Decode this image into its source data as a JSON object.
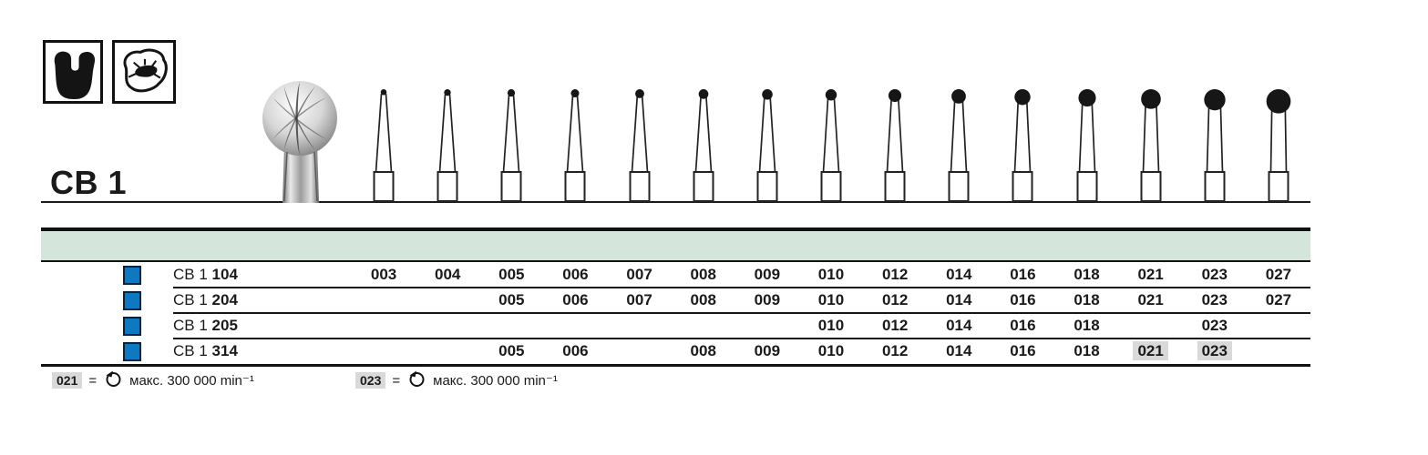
{
  "header": {
    "series_label": "CB 1",
    "icon1_name": "molar-silhouette-icon",
    "icon2_name": "occlusal-surface-icon"
  },
  "table": {
    "size_columns": [
      "003",
      "004",
      "005",
      "006",
      "007",
      "008",
      "009",
      "010",
      "012",
      "014",
      "016",
      "018",
      "021",
      "023",
      "027"
    ],
    "rows": [
      {
        "prefix": "CB 1",
        "number": "104",
        "cells": [
          "003",
          "004",
          "005",
          "006",
          "007",
          "008",
          "009",
          "010",
          "012",
          "014",
          "016",
          "018",
          "021",
          "023",
          "027"
        ],
        "highlighted": []
      },
      {
        "prefix": "CB 1",
        "number": "204",
        "cells": [
          "",
          "",
          "005",
          "006",
          "007",
          "008",
          "009",
          "010",
          "012",
          "014",
          "016",
          "018",
          "021",
          "023",
          "027"
        ],
        "highlighted": []
      },
      {
        "prefix": "CB 1",
        "number": "205",
        "cells": [
          "",
          "",
          "",
          "",
          "",
          "",
          "",
          "010",
          "012",
          "014",
          "016",
          "018",
          "",
          "023",
          ""
        ],
        "highlighted": []
      },
      {
        "prefix": "CB 1",
        "number": "314",
        "cells": [
          "",
          "",
          "005",
          "006",
          "",
          "008",
          "009",
          "010",
          "012",
          "014",
          "016",
          "018",
          "021",
          "023",
          ""
        ],
        "highlighted": [
          "021",
          "023"
        ]
      }
    ]
  },
  "footnotes": [
    {
      "size": "021",
      "equals": "=",
      "text": "макс. 300 000 min⁻¹"
    },
    {
      "size": "023",
      "equals": "=",
      "text": "макс. 300 000 min⁻¹"
    }
  ],
  "colors": {
    "band_teal": "#d4e6dc",
    "row_marker_blue": "#0e79c0",
    "highlight_gray": "#d9d9d9",
    "ink": "#1a1a1a"
  }
}
